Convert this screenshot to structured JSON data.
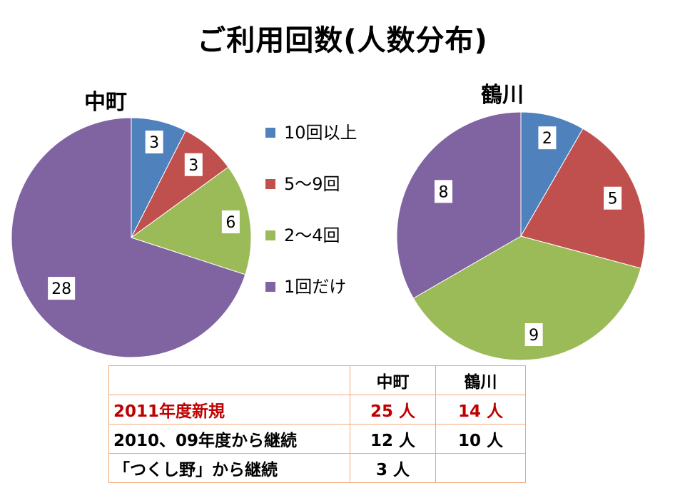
{
  "title": "ご利用回数(人数分布)",
  "colors": {
    "blue": "#4f81bd",
    "red": "#c0504d",
    "green": "#9bbb59",
    "purple": "#8064a2",
    "table_border": "#f2a777",
    "highlight_text": "#c00000"
  },
  "chart_data": [
    {
      "type": "pie",
      "title": "中町",
      "categories": [
        "10回以上",
        "5〜9回",
        "2〜4回",
        "1回だけ"
      ],
      "values": [
        3,
        3,
        6,
        28
      ]
    },
    {
      "type": "pie",
      "title": "鶴川",
      "categories": [
        "10回以上",
        "5〜9回",
        "2〜4回",
        "1回だけ"
      ],
      "values": [
        2,
        5,
        9,
        8
      ]
    }
  ],
  "legend": [
    {
      "label": "10回以上",
      "color": "#4f81bd"
    },
    {
      "label": "5〜9回",
      "color": "#c0504d"
    },
    {
      "label": "2〜4回",
      "color": "#9bbb59"
    },
    {
      "label": "1回だけ",
      "color": "#8064a2"
    }
  ],
  "table": {
    "headers": [
      "",
      "中町",
      "鶴川"
    ],
    "rows": [
      [
        "2011年度新規",
        "25 人",
        "14 人"
      ],
      [
        "2010、09年度から継続",
        "12 人",
        "10 人"
      ],
      [
        "「つくし野」から継続",
        "3 人",
        ""
      ]
    ]
  }
}
